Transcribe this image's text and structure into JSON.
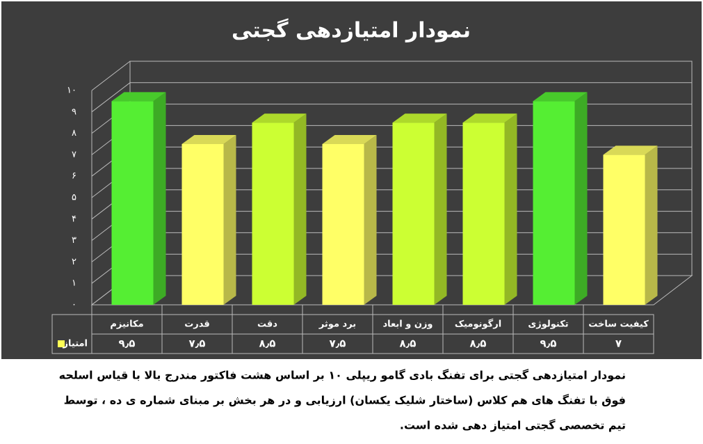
{
  "chart_data": {
    "type": "bar3d",
    "title": "نمودار امتیازدهی گجتی",
    "categories": [
      "مکانیزم",
      "قدرت",
      "دقت",
      "برد موثر",
      "وزن و ابعاد",
      "ارگونومیک",
      "تکنولوژی",
      "کیفیت ساخت"
    ],
    "series": [
      {
        "name": "امتیاز",
        "color": "#ffff55",
        "colors": [
          "#55ee33",
          "#ffff66",
          "#ccff33",
          "#ffff66",
          "#ccff33",
          "#ccff33",
          "#55ee33",
          "#ffff66"
        ],
        "values": [
          9.5,
          7.5,
          8.5,
          7.5,
          8.5,
          8.5,
          9.5,
          7
        ],
        "value_labels": [
          "۹٫۵",
          "۷٫۵",
          "۸٫۵",
          "۷٫۵",
          "۸٫۵",
          "۸٫۵",
          "۹٫۵",
          "۷"
        ]
      }
    ],
    "ylim": [
      0,
      10
    ],
    "yticks": [
      {
        "value": 0,
        "label": "۰"
      },
      {
        "value": 1,
        "label": "۱"
      },
      {
        "value": 2,
        "label": "۲"
      },
      {
        "value": 3,
        "label": "۳"
      },
      {
        "value": 4,
        "label": "۴"
      },
      {
        "value": 5,
        "label": "۵"
      },
      {
        "value": 6,
        "label": "۶"
      },
      {
        "value": 7,
        "label": "۷"
      },
      {
        "value": 8,
        "label": "۸"
      },
      {
        "value": 9,
        "label": "۹"
      },
      {
        "value": 10,
        "label": "۱۰"
      }
    ],
    "grid": true,
    "caption": [
      "نمودار امتیازدهی گجتی برای تفنگ بادی گامو ریپلی ۱۰ بر اساس هشت فاکتور مندرج بالا با قیاس اسلحه",
      "فوق با تفنگ های هم کلاس (ساختار شلیک یکسان) ارزیابی و در هر بخش بر مبنای شماره ی ده ، توسط",
      "تیم تخصصی گجتی امتیاز دهی شده است."
    ]
  }
}
